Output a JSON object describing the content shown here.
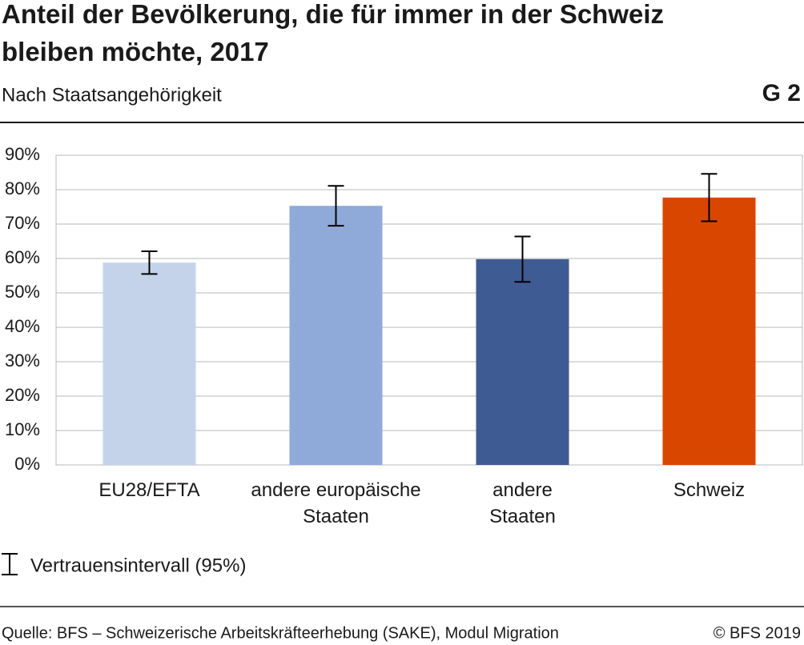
{
  "chart_data": {
    "type": "bar",
    "title": "Anteil der Bevölkerung, die für immer in der Schweiz bleiben möchte, 2017",
    "subtitle": "Nach Staatsangehörigkeit",
    "chart_number": "G 2",
    "categories": [
      "EU28/EFTA",
      "andere europäische\nStaaten",
      "andere\nStaaten",
      "Schweiz"
    ],
    "values": [
      58.8,
      75.3,
      59.8,
      77.7
    ],
    "errors": [
      3.3,
      5.8,
      6.6,
      6.9
    ],
    "colors": [
      "#c5d3ea",
      "#8faad9",
      "#3f5b94",
      "#d94600"
    ],
    "ylim": [
      0,
      90
    ],
    "yticks": [
      {
        "value": 0,
        "label": "0%"
      },
      {
        "value": 10,
        "label": "10%"
      },
      {
        "value": 20,
        "label": "20%"
      },
      {
        "value": 30,
        "label": "30%"
      },
      {
        "value": 40,
        "label": "40%"
      },
      {
        "value": 50,
        "label": "50%"
      },
      {
        "value": 60,
        "label": "60%"
      },
      {
        "value": 70,
        "label": "70%"
      },
      {
        "value": 80,
        "label": "80%"
      },
      {
        "value": 90,
        "label": "90%"
      }
    ],
    "grid": true,
    "error_legend": "Vertrauensintervall (95%)",
    "source": "Quelle: BFS – Schweizerische Arbeitskräfteerhebung (SAKE), Modul Migration",
    "copyright": "© BFS 2019"
  }
}
